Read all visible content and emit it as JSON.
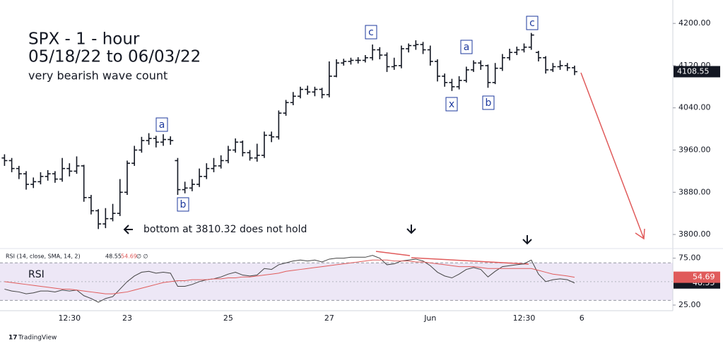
{
  "chart_data": [
    {
      "type": "ohlc",
      "title": "SPX - 1 - hour",
      "subtitle": "05/18/22 to 06/03/22",
      "note": "very bearish wave count",
      "annotation": "bottom at 3810.32 does not hold",
      "wave_labels": [
        "a",
        "b",
        "c",
        "x",
        "a",
        "b",
        "c"
      ],
      "color": "#131722",
      "categories": [
        null,
        null,
        null,
        null,
        null,
        null,
        null,
        null,
        null,
        "12:30",
        null,
        null,
        null,
        null,
        null,
        null,
        null,
        "23",
        null,
        null,
        null,
        null,
        null,
        null,
        null,
        null,
        null,
        null,
        null,
        null,
        null,
        "25",
        null,
        null,
        null,
        null,
        null,
        null,
        null,
        null,
        null,
        null,
        null,
        null,
        null,
        "27",
        null,
        null,
        null,
        null,
        null,
        null,
        null,
        null,
        null,
        null,
        null,
        null,
        null,
        "Jun",
        null,
        null,
        null,
        null,
        null,
        null,
        null,
        null,
        null,
        null,
        null,
        null,
        "12:30",
        null,
        null,
        null,
        null,
        null,
        null,
        null,
        "6"
      ],
      "open": [
        3945,
        3940,
        3925,
        3915,
        3895,
        3900,
        3910,
        3915,
        3905,
        3925,
        3920,
        3930,
        3870,
        3845,
        3820,
        3830,
        3840,
        3880,
        3935,
        3960,
        3978,
        3982,
        3975,
        3980,
        3940,
        3885,
        3888,
        3895,
        3910,
        3925,
        3930,
        3940,
        3960,
        3975,
        3955,
        3945,
        3950,
        3988,
        3985,
        4030,
        4050,
        4062,
        4075,
        4070,
        4075,
        4065,
        4100,
        4125,
        4128,
        4130,
        4130,
        4135,
        4150,
        4140,
        4118,
        4120,
        4152,
        4158,
        4160,
        4150,
        4128,
        4100,
        4088,
        4080,
        4092,
        4112,
        4125,
        4120,
        4088,
        4115,
        4135,
        4145,
        4150,
        4155,
        4145,
        4135,
        4112,
        4118,
        4120,
        4116,
        null
      ],
      "high": [
        3952,
        3945,
        3930,
        3920,
        3908,
        3918,
        3922,
        3920,
        3945,
        3935,
        3948,
        3932,
        3875,
        3848,
        3850,
        3858,
        3905,
        3940,
        3968,
        3985,
        3992,
        3987,
        3990,
        3986,
        3945,
        3900,
        3905,
        3925,
        3935,
        3945,
        3950,
        3968,
        3982,
        3978,
        3960,
        3972,
        3995,
        3995,
        4035,
        4055,
        4070,
        4080,
        4082,
        4080,
        4078,
        4128,
        4132,
        4133,
        4135,
        4136,
        4140,
        4160,
        4155,
        4145,
        4135,
        4158,
        4162,
        4168,
        4165,
        4158,
        4132,
        4105,
        4095,
        4100,
        4118,
        4130,
        4130,
        4122,
        4125,
        4142,
        4152,
        4156,
        4162,
        4182,
        4148,
        4138,
        4125,
        4130,
        4125,
        4120,
        null
      ],
      "low": [
        3930,
        3918,
        3905,
        3885,
        3888,
        3895,
        3902,
        3898,
        3900,
        3910,
        3915,
        3862,
        3838,
        3810.32,
        3812,
        3825,
        3835,
        3875,
        3930,
        3955,
        3970,
        3965,
        3968,
        3970,
        3875,
        3878,
        3882,
        3890,
        3905,
        3918,
        3925,
        3935,
        3955,
        3948,
        3940,
        3938,
        3945,
        3975,
        3980,
        4025,
        4045,
        4058,
        4065,
        4062,
        4058,
        4060,
        4098,
        4120,
        4122,
        4124,
        4126,
        4130,
        4132,
        4108,
        4112,
        4115,
        4145,
        4150,
        4142,
        4120,
        4090,
        4080,
        4072,
        4075,
        4088,
        4108,
        4112,
        4078,
        4085,
        4110,
        4130,
        4140,
        4145,
        4150,
        4128,
        4105,
        4108,
        4112,
        4110,
        4102,
        null
      ],
      "close": [
        3940,
        3925,
        3915,
        3895,
        3900,
        3910,
        3915,
        3905,
        3925,
        3920,
        3930,
        3870,
        3845,
        3820,
        3830,
        3840,
        3880,
        3935,
        3960,
        3978,
        3982,
        3975,
        3980,
        3978,
        3885,
        3888,
        3895,
        3910,
        3925,
        3930,
        3940,
        3960,
        3975,
        3955,
        3945,
        3950,
        3988,
        3985,
        4030,
        4050,
        4062,
        4075,
        4070,
        4075,
        4065,
        4100,
        4125,
        4128,
        4130,
        4130,
        4135,
        4150,
        4140,
        4118,
        4120,
        4152,
        4158,
        4160,
        4150,
        4128,
        4100,
        4088,
        4080,
        4092,
        4112,
        4125,
        4120,
        4088,
        4115,
        4135,
        4145,
        4150,
        4155,
        4178,
        4135,
        4112,
        4118,
        4120,
        4116,
        4108.55,
        null
      ],
      "ylim": [
        3776,
        4231
      ],
      "yticks": [
        {
          "value": 3800,
          "label": "3800.00"
        },
        {
          "value": 3880,
          "label": "3880.00"
        },
        {
          "value": 3960,
          "label": "3960.00"
        },
        {
          "value": 4040,
          "label": "4040.00"
        },
        {
          "value": 4120,
          "label": "4120.00"
        },
        {
          "value": 4200,
          "label": "4200.00"
        }
      ]
    },
    {
      "type": "line",
      "label": "RSI",
      "legend": "RSI (14, close, SMA, 14, 2)",
      "legend_extra": "∅ ∅",
      "ylim": [
        19,
        83
      ],
      "yticks": [
        {
          "value": 25,
          "label": "25.00"
        },
        {
          "value": 75,
          "label": "75.00"
        }
      ],
      "band": [
        30,
        70
      ],
      "midline": 50,
      "band_color": "#ede7f6",
      "series": [
        {
          "color": "#444444",
          "values": [
            42,
            40,
            39,
            37,
            38,
            40,
            40,
            39,
            41,
            40,
            41,
            35,
            32,
            28,
            32,
            34,
            42,
            50,
            56,
            60,
            61,
            59,
            60,
            59,
            45,
            45,
            47,
            50,
            52,
            53,
            55,
            58,
            60,
            57,
            56,
            57,
            64,
            63,
            68,
            70,
            72,
            73,
            72,
            73,
            71,
            74,
            75,
            75,
            76,
            76,
            76,
            78,
            75,
            68,
            69,
            72,
            73,
            74,
            72,
            67,
            60,
            56,
            54,
            58,
            63,
            65,
            63,
            55,
            61,
            66,
            67,
            68,
            69,
            73,
            58,
            50,
            52,
            53,
            52,
            48.55,
            null
          ]
        },
        {
          "color": "#e05b5b",
          "values": [
            50,
            49,
            48,
            47,
            46,
            45,
            44,
            43,
            42,
            42,
            41,
            40,
            39,
            38,
            37,
            37,
            38,
            39,
            41,
            43,
            45,
            47,
            49,
            50,
            51,
            51,
            52,
            52,
            52,
            53,
            53,
            54,
            54,
            55,
            55,
            56,
            57,
            58,
            59,
            61,
            62,
            63,
            64,
            65,
            66,
            67,
            68,
            69,
            70,
            71,
            72,
            73,
            73,
            73,
            72,
            72,
            72,
            71,
            71,
            70,
            69,
            68,
            67,
            66,
            66,
            66,
            65,
            64,
            64,
            64,
            64,
            64,
            64,
            64,
            62,
            60,
            58,
            57,
            56,
            54.69,
            null
          ]
        }
      ]
    }
  ],
  "footer": "TradingView"
}
